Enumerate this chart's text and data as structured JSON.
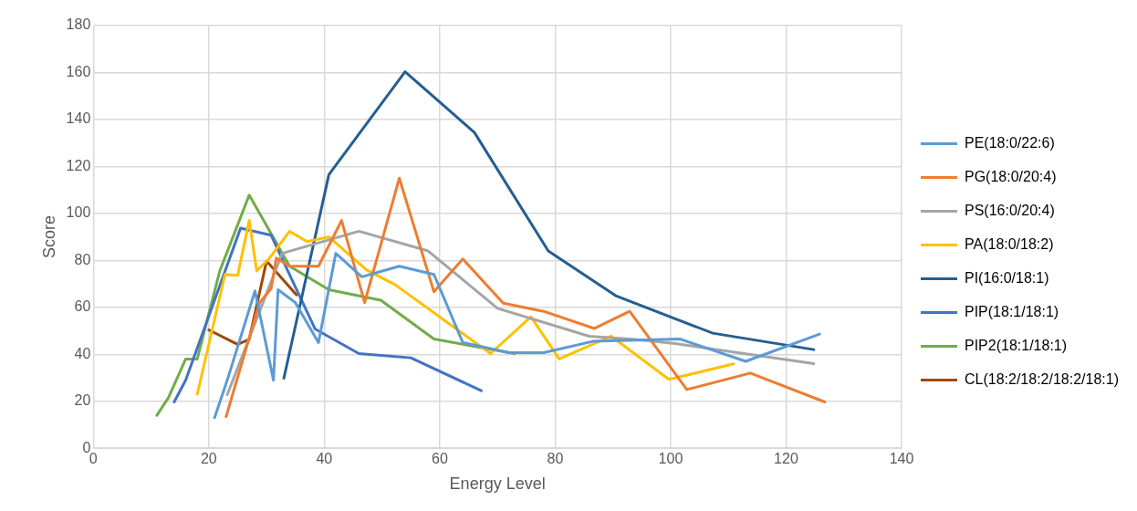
{
  "chart_data": {
    "type": "line",
    "xlabel": "Energy Level",
    "ylabel": "Score",
    "xlim": [
      0,
      140
    ],
    "xticks": [
      0,
      20,
      40,
      60,
      80,
      100,
      120,
      140
    ],
    "ylim": [
      0,
      180
    ],
    "yticks": [
      0,
      20,
      40,
      60,
      80,
      100,
      120,
      140,
      160,
      180
    ],
    "grid": true,
    "legend": "right",
    "marker": "none",
    "line_style": "solid",
    "series": [
      {
        "name": "PE(18:0/22:6)",
        "color": "#5b9bd5",
        "x": [
          21,
          23.2,
          28,
          31.2,
          32,
          35,
          39,
          42,
          46.5,
          53,
          59,
          64,
          72,
          78,
          86.5,
          101.6,
          113,
          125.8
        ],
        "values": [
          13,
          29,
          67,
          29,
          67.5,
          62,
          45,
          83,
          73,
          77.5,
          74,
          45,
          40.7,
          40.7,
          45.5,
          46.5,
          37,
          48.6
        ]
      },
      {
        "name": "PG(18:0/20:4)",
        "color": "#ed7d31",
        "x": [
          23,
          28.8,
          30.8,
          31.7,
          34,
          39,
          43,
          47,
          53,
          59,
          64,
          71,
          78,
          86.8,
          92.9,
          102.8,
          113.8,
          126.7
        ],
        "values": [
          13.5,
          62,
          68,
          81,
          77.5,
          77.5,
          97,
          62,
          115,
          66.6,
          80.6,
          61.8,
          58.3,
          51,
          58.3,
          25,
          32,
          19.7
        ]
      },
      {
        "name": "PS(16:0/20:4)",
        "color": "#a5a5a5",
        "x": [
          23.2,
          32.7,
          46,
          58,
          70,
          85.9,
          93.4,
          100.5,
          124.8
        ],
        "values": [
          22.8,
          83,
          92.4,
          84,
          59.6,
          47.7,
          46.4,
          44.7,
          36
        ]
      },
      {
        "name": "PA(18:0/18:2)",
        "color": "#ffc000",
        "x": [
          18,
          22.8,
          25,
          27,
          28.3,
          30.4,
          34,
          37,
          40.8,
          47.3,
          52.3,
          68.8,
          75.8,
          80.7,
          89.7,
          99.7,
          110.9
        ],
        "values": [
          23,
          74,
          73.6,
          97,
          75.5,
          80.6,
          92.4,
          88,
          90,
          76,
          69.6,
          40.3,
          56,
          38,
          47.7,
          29.3,
          35.9
        ]
      },
      {
        "name": "PI(16:0/18:1)",
        "color": "#255e91",
        "x": [
          33,
          40.8,
          54,
          66,
          78.8,
          90.6,
          107.3,
          124.8
        ],
        "values": [
          29.8,
          116.5,
          160.3,
          134.5,
          84,
          64.8,
          49,
          42
        ]
      },
      {
        "name": "PIP(18:1/18:1)",
        "color": "#4472c4",
        "x": [
          14,
          16,
          25.5,
          30.8,
          38.4,
          46,
          55,
          67.2
        ],
        "values": [
          19.7,
          29,
          93.7,
          90.7,
          50.8,
          40.3,
          38.5,
          24.5
        ]
      },
      {
        "name": "PIP2(18:1/18:1)",
        "color": "#70ad47",
        "x": [
          11,
          13,
          16,
          18,
          21.9,
          27,
          34,
          40.8,
          47.8,
          49.8,
          59,
          73
        ],
        "values": [
          14,
          21.5,
          38,
          38,
          75.5,
          107.8,
          77.5,
          67.5,
          64,
          63,
          46.5,
          40.3
        ]
      },
      {
        "name": "CL(18:2/18:2/18:2/18:1)",
        "color": "#9e480e",
        "x": [
          20,
          25,
          27,
          30,
          35.2
        ],
        "values": [
          50.4,
          44.2,
          46.4,
          79.7,
          65.3
        ]
      }
    ]
  }
}
